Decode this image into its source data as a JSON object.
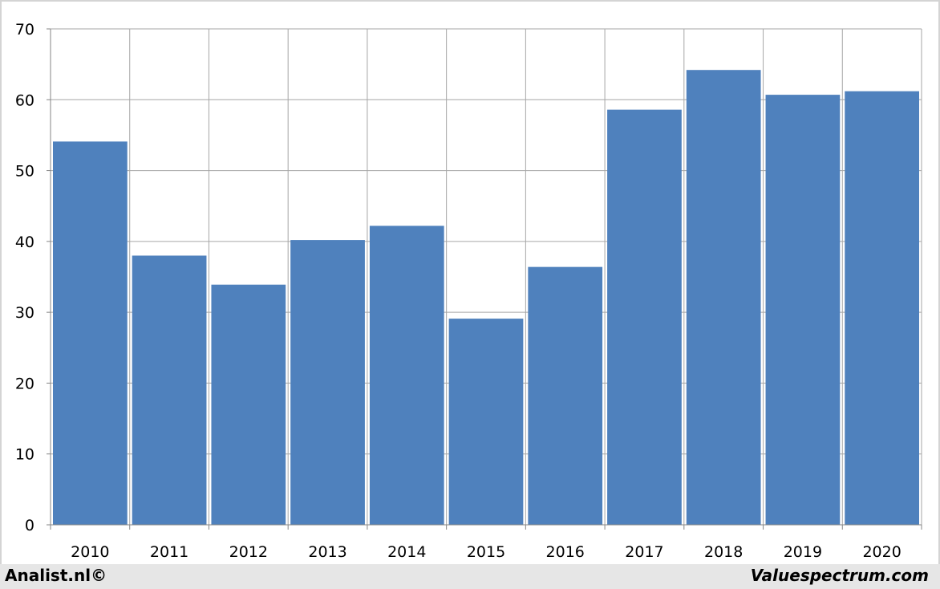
{
  "chart_data": {
    "type": "bar",
    "categories": [
      "2010",
      "2011",
      "2012",
      "2013",
      "2014",
      "2015",
      "2016",
      "2017",
      "2018",
      "2019",
      "2020"
    ],
    "values": [
      54.1,
      38.0,
      33.9,
      40.2,
      42.2,
      29.1,
      36.4,
      58.6,
      64.2,
      60.7,
      61.2
    ],
    "ylim": [
      0,
      70
    ],
    "yticks": [
      0,
      10,
      20,
      30,
      40,
      50,
      60,
      70
    ],
    "grid": true,
    "bar_color": "#4f81bd",
    "grid_color": "#a6a6a6"
  },
  "footer": {
    "left": "Analist.nl©",
    "right": "Valuespectrum.com"
  }
}
